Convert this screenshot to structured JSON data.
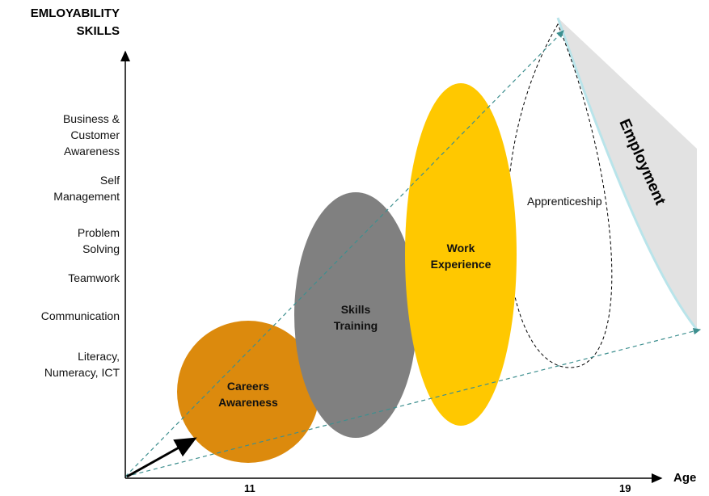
{
  "y_axis_title": "EMLOYABILITY\nSKILLS",
  "x_axis_title": "Age",
  "skills": [
    "Business &\nCustomer\nAwareness",
    "Self\nManagement",
    "Problem\nSolving",
    "Teamwork",
    "Communication",
    "Literacy,\nNumeracy, ICT"
  ],
  "x_ticks": [
    "11",
    "19"
  ],
  "stages": {
    "careers": "Careers\nAwareness",
    "skills_training": "Skills\nTraining",
    "work_experience": "Work\nExperience",
    "apprenticeship": "Apprenticeship",
    "employment": "Employment"
  },
  "colors": {
    "careers": "#dc8a0d",
    "skills_training": "#808080",
    "work_experience": "#ffc800",
    "employment": "#e2e2e2",
    "employment_edge": "#b9e4ea",
    "guide_lines": "#3d8f8f"
  }
}
